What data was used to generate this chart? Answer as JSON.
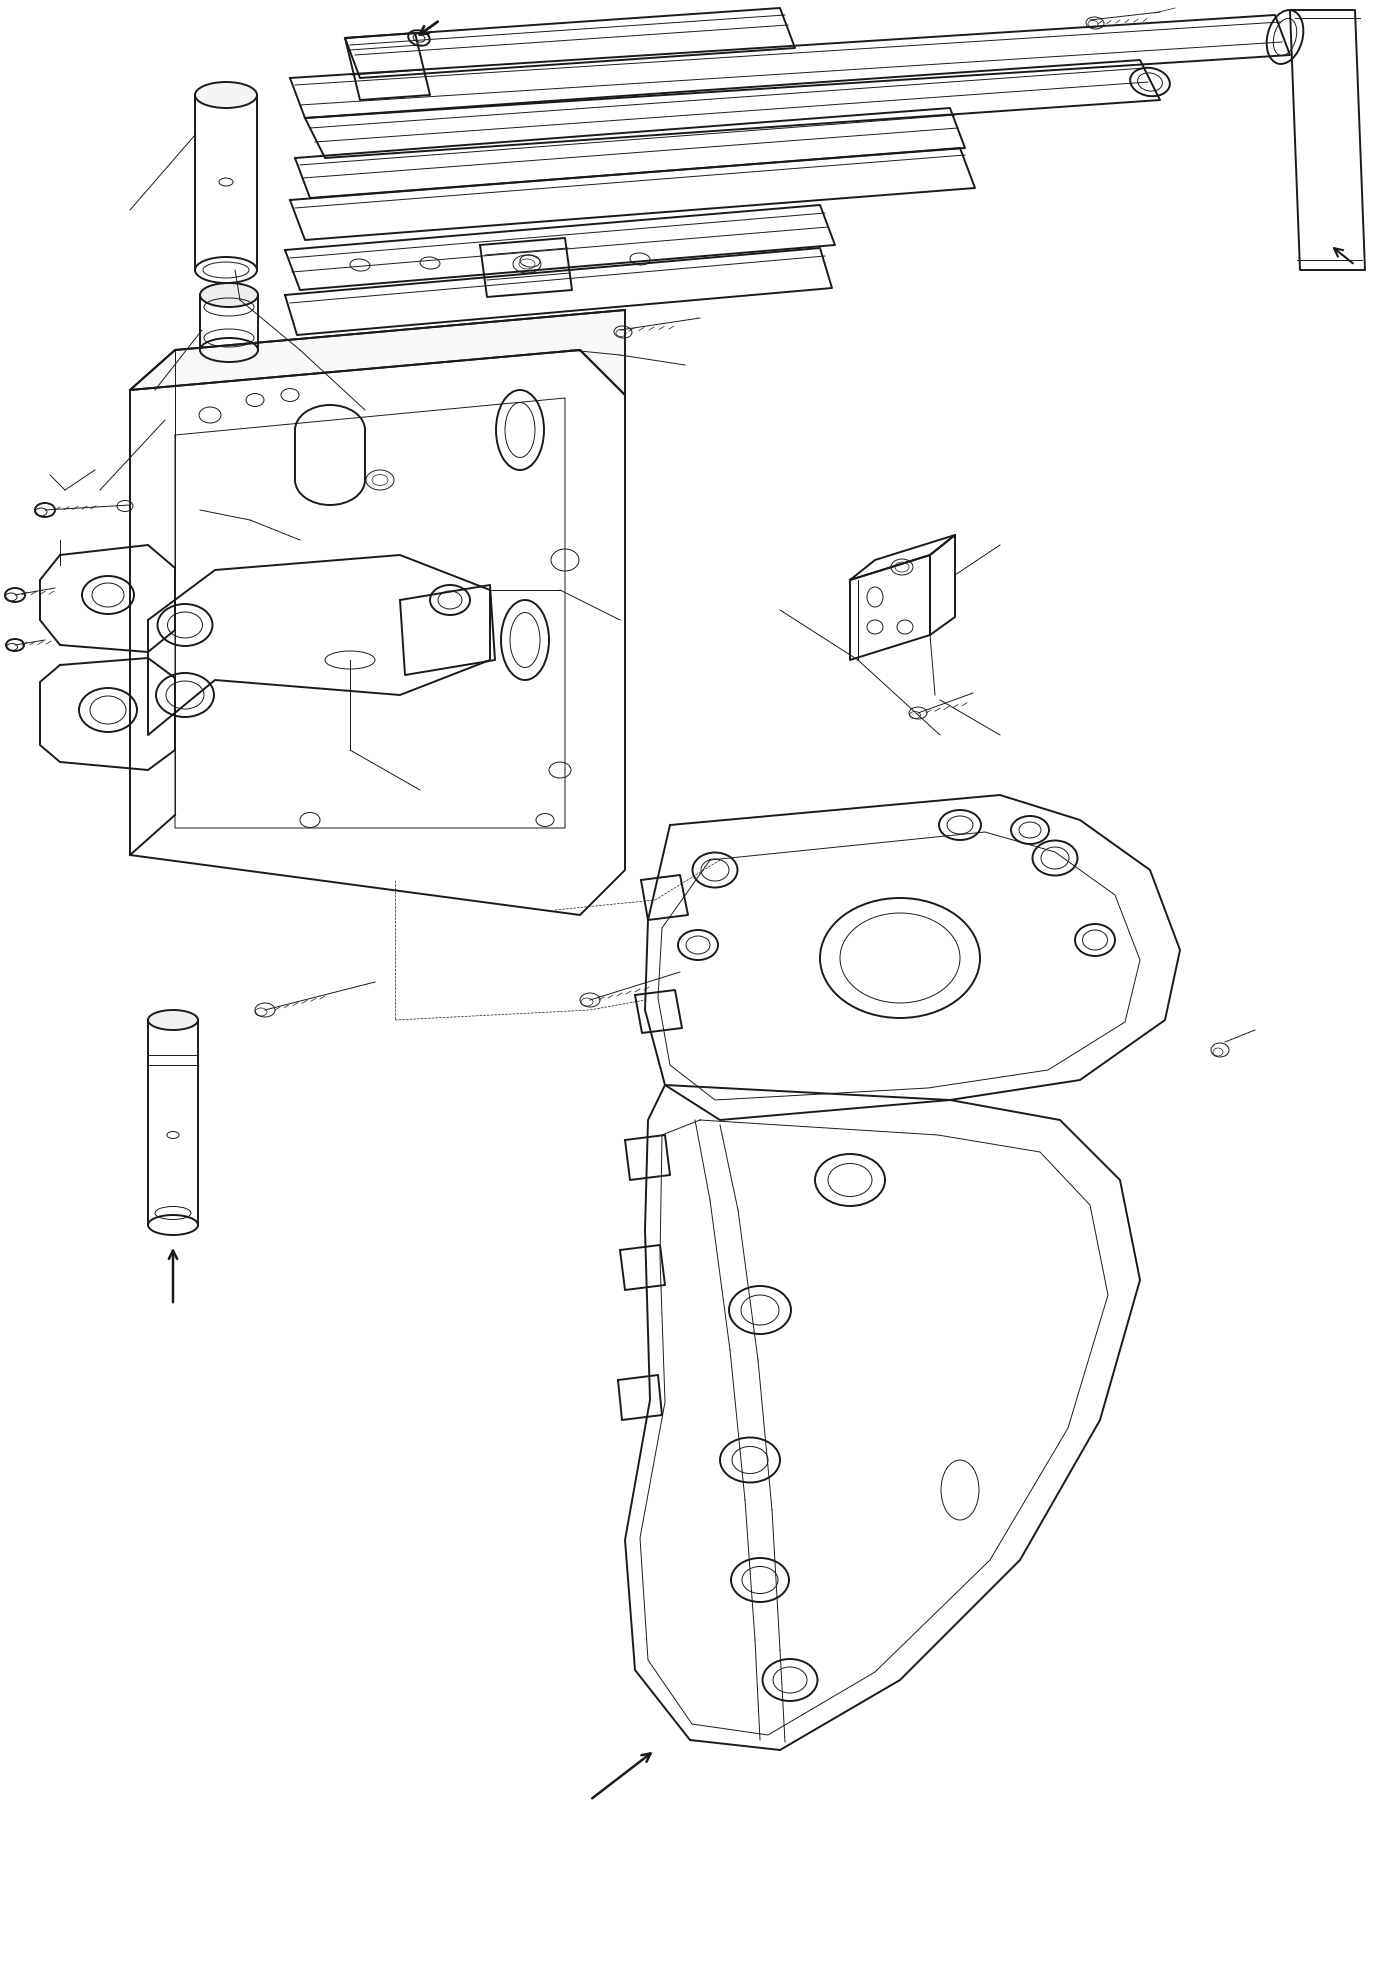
{
  "background_color": "#ffffff",
  "line_color": "#1a1a1a",
  "fig_width": 13.97,
  "fig_height": 19.61,
  "dpi": 100,
  "lw_main": 1.4,
  "lw_med": 1.0,
  "lw_thin": 0.7,
  "lw_xtra": 0.5
}
